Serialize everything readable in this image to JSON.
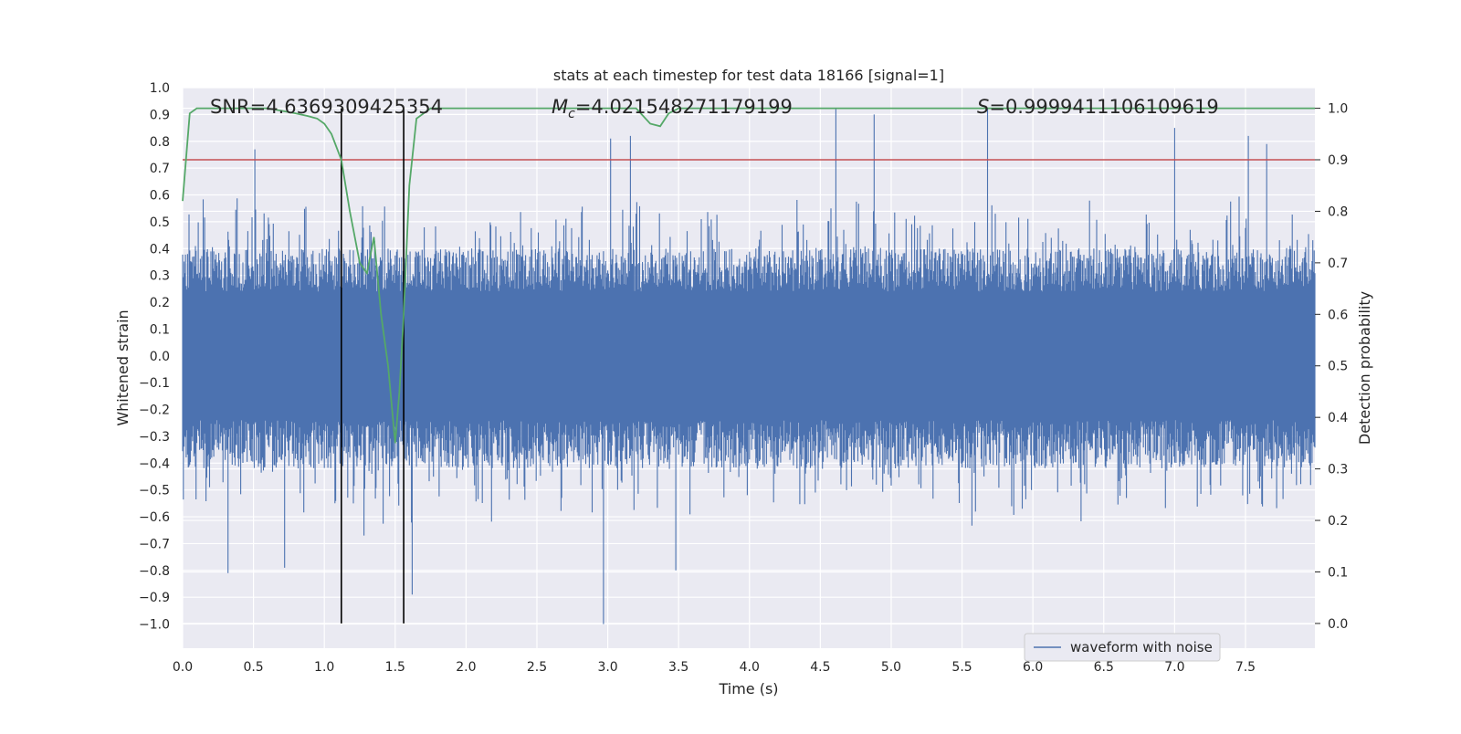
{
  "chart_data": {
    "type": "line",
    "title": "stats at each timestep for test data 18166 [signal=1]",
    "xlabel": "Time (s)",
    "ylabel": "Whitened strain",
    "y2label": "Detection probability",
    "xlim": [
      0.0,
      7.99
    ],
    "ylim": [
      -1.09,
      1.0
    ],
    "y2lim": [
      -0.048,
      1.04
    ],
    "x_ticks": [
      0.0,
      0.5,
      1.0,
      1.5,
      2.0,
      2.5,
      3.0,
      3.5,
      4.0,
      4.5,
      5.0,
      5.5,
      6.0,
      6.5,
      7.0,
      7.5
    ],
    "y_ticks": [
      -1.0,
      -0.9,
      -0.8,
      -0.7,
      -0.6,
      -0.5,
      -0.4,
      -0.3,
      -0.2,
      -0.1,
      0.0,
      0.1,
      0.2,
      0.3,
      0.4,
      0.5,
      0.6,
      0.7,
      0.8,
      0.9,
      1.0
    ],
    "y2_ticks": [
      0.0,
      0.1,
      0.2,
      0.3,
      0.4,
      0.5,
      0.6,
      0.7,
      0.8,
      0.9,
      1.0
    ],
    "grid": true,
    "legend": {
      "location": "lower-right",
      "entries": [
        "waveform with noise"
      ]
    },
    "annotations": {
      "snr": "SNR=4.6369309425354",
      "mc_symbol": "M",
      "mc_sub": "c",
      "mc_value": "=4.021548271179199",
      "s_symbol": "S",
      "s_value": "=0.9999411106109619"
    },
    "threshold": 0.9,
    "vertical_lines": [
      1.12,
      1.56
    ],
    "series": [
      {
        "name": "waveform with noise",
        "axis": "left",
        "color": "#4c72b0",
        "envelope": {
          "x_start": 0.0,
          "x_end": 7.99,
          "dt": 0.005,
          "typical_upper": 0.4,
          "typical_lower": -0.42
        },
        "spikes": [
          {
            "x": 0.32,
            "y": -0.81
          },
          {
            "x": 0.51,
            "y": 0.77
          },
          {
            "x": 0.72,
            "y": -0.79
          },
          {
            "x": 1.28,
            "y": -0.67
          },
          {
            "x": 1.48,
            "y": -0.35
          },
          {
            "x": 1.62,
            "y": -0.89
          },
          {
            "x": 2.97,
            "y": -1.0
          },
          {
            "x": 3.02,
            "y": 0.81
          },
          {
            "x": 3.16,
            "y": 0.82
          },
          {
            "x": 3.48,
            "y": -0.8
          },
          {
            "x": 4.61,
            "y": 0.92
          },
          {
            "x": 4.88,
            "y": 0.9
          },
          {
            "x": 5.68,
            "y": 0.92
          },
          {
            "x": 7.0,
            "y": 0.85
          },
          {
            "x": 7.52,
            "y": 0.82
          },
          {
            "x": 7.65,
            "y": 0.79
          }
        ]
      },
      {
        "name": "Detection probability",
        "axis": "right",
        "color": "#55a868",
        "x": [
          0.0,
          0.05,
          0.1,
          0.2,
          0.4,
          0.6,
          0.8,
          0.88,
          0.95,
          1.0,
          1.05,
          1.12,
          1.18,
          1.25,
          1.3,
          1.35,
          1.4,
          1.45,
          1.5,
          1.53,
          1.56,
          1.6,
          1.65,
          1.75,
          2.0,
          2.5,
          3.0,
          3.2,
          3.3,
          3.37,
          3.43,
          3.5,
          3.7,
          4.0,
          5.0,
          6.0,
          7.0,
          7.99
        ],
        "y": [
          0.82,
          0.99,
          1.0,
          1.0,
          1.0,
          1.0,
          0.99,
          0.985,
          0.98,
          0.97,
          0.95,
          0.9,
          0.8,
          0.7,
          0.68,
          0.75,
          0.6,
          0.5,
          0.35,
          0.45,
          0.6,
          0.85,
          0.98,
          1.0,
          1.0,
          1.0,
          1.0,
          1.0,
          0.97,
          0.965,
          0.99,
          1.0,
          1.0,
          1.0,
          1.0,
          1.0,
          1.0,
          1.0
        ]
      }
    ]
  }
}
